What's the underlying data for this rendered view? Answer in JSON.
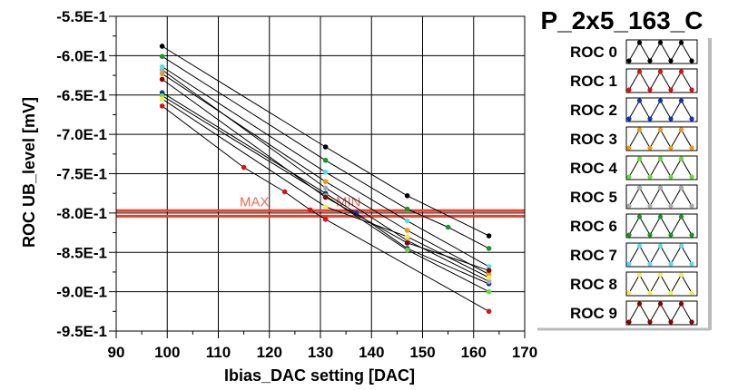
{
  "chart_data": {
    "type": "line",
    "title": "P_2x5_163_C",
    "xlabel": "Ibias_DAC setting [DAC]",
    "ylabel": "ROC UB_level [mV]",
    "xlim": [
      90,
      170
    ],
    "ylim": [
      -0.95,
      -0.55
    ],
    "xticks": [
      90,
      100,
      110,
      120,
      130,
      140,
      150,
      160,
      170
    ],
    "xtick_labels": [
      "90",
      "100",
      "110",
      "120",
      "130",
      "140",
      "150",
      "160",
      "170"
    ],
    "yticks": [
      -0.55,
      -0.6,
      -0.65,
      -0.7,
      -0.75,
      -0.8,
      -0.85,
      -0.9,
      -0.95
    ],
    "ytick_labels": [
      "-5.5E-1",
      "-6.0E-1",
      "-6.5E-1",
      "-7.0E-1",
      "-7.5E-1",
      "-8.0E-1",
      "-8.5E-1",
      "-9.0E-1",
      "-9.5E-1"
    ],
    "grid": true,
    "reference_lines": [
      {
        "label": "MAX",
        "y": -0.797,
        "color": "#e8402a"
      },
      {
        "label": "MIN",
        "y": -0.804,
        "color": "#e8402a"
      }
    ],
    "series": [
      {
        "name": "ROC 0",
        "color": "#000000",
        "x": [
          99,
          131,
          147,
          163
        ],
        "y": [
          -0.588,
          -0.716,
          -0.778,
          -0.829
        ]
      },
      {
        "name": "ROC 1",
        "color": "#dd1111",
        "x": [
          99,
          115,
          123,
          128,
          131,
          163
        ],
        "y": [
          -0.664,
          -0.742,
          -0.773,
          -0.796,
          -0.808,
          -0.925
        ]
      },
      {
        "name": "ROC 2",
        "color": "#1133bb",
        "x": [
          99,
          131,
          137,
          147,
          163
        ],
        "y": [
          -0.647,
          -0.775,
          -0.8,
          -0.845,
          -0.89
        ]
      },
      {
        "name": "ROC 3",
        "color": "#ee9911",
        "x": [
          99,
          131,
          147,
          163
        ],
        "y": [
          -0.623,
          -0.76,
          -0.822,
          -0.878
        ]
      },
      {
        "name": "ROC 4",
        "color": "#66dd33",
        "x": [
          99,
          131,
          147,
          163
        ],
        "y": [
          -0.651,
          -0.778,
          -0.847,
          -0.9
        ]
      },
      {
        "name": "ROC 5",
        "color": "#aaaaaa",
        "x": [
          99,
          131,
          147,
          163
        ],
        "y": [
          -0.618,
          -0.768,
          -0.835,
          -0.887
        ]
      },
      {
        "name": "ROC 6",
        "color": "#119922",
        "x": [
          99,
          131,
          147,
          155,
          163
        ],
        "y": [
          -0.601,
          -0.733,
          -0.795,
          -0.818,
          -0.845
        ]
      },
      {
        "name": "ROC 7",
        "color": "#55ddee",
        "x": [
          99,
          131,
          147,
          163
        ],
        "y": [
          -0.614,
          -0.748,
          -0.81,
          -0.868
        ]
      },
      {
        "name": "ROC 8",
        "color": "#eeee55",
        "x": [
          99,
          131,
          147,
          163
        ],
        "y": [
          -0.655,
          -0.792,
          -0.83,
          -0.882
        ]
      },
      {
        "name": "ROC 9",
        "color": "#880000",
        "x": [
          99,
          131,
          147,
          163
        ],
        "y": [
          -0.63,
          -0.78,
          -0.838,
          -0.873
        ]
      }
    ],
    "legend": {
      "position": "right",
      "entries": [
        "ROC 0",
        "ROC 1",
        "ROC 2",
        "ROC 3",
        "ROC 4",
        "ROC 5",
        "ROC 6",
        "ROC 7",
        "ROC 8",
        "ROC 9"
      ]
    }
  }
}
